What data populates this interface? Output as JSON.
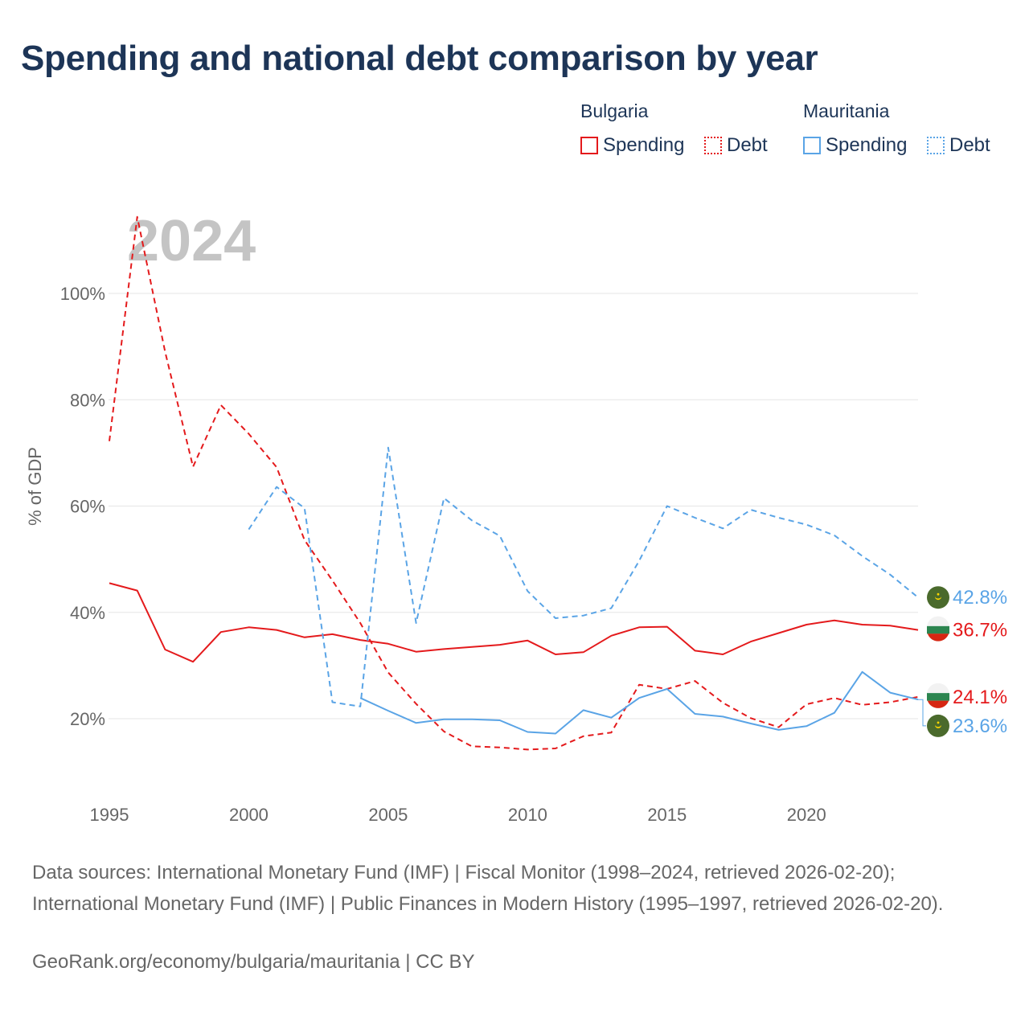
{
  "title": "Spending and national debt comparison by year",
  "legend": {
    "groups": [
      {
        "country": "Bulgaria",
        "color": "#e41a1c",
        "items": [
          {
            "label": "Spending",
            "style": "solid"
          },
          {
            "label": "Debt",
            "style": "dotted"
          }
        ]
      },
      {
        "country": "Mauritania",
        "color": "#5aa4e6",
        "items": [
          {
            "label": "Spending",
            "style": "solid"
          },
          {
            "label": "Debt",
            "style": "dotted"
          }
        ]
      }
    ]
  },
  "sources": "Data sources: International Monetary Fund (IMF) | Fiscal Monitor (1998–2024, retrieved 2026-02-20); International Monetary Fund (IMF) | Public Finances in Modern History (1995–1997, retrieved 2026-02-20).",
  "credit": "GeoRank.org/economy/bulgaria/mauritania | CC BY",
  "chart_data": {
    "type": "line",
    "title": "Spending and national debt comparison by year",
    "year_label": "2024",
    "ylabel": "% of GDP",
    "xlabel": "",
    "xlim": [
      1995,
      2024
    ],
    "ylim": [
      8,
      112
    ],
    "x_ticks": [
      1995,
      2000,
      2005,
      2010,
      2015,
      2020
    ],
    "y_ticks": [
      20,
      40,
      60,
      80,
      100
    ],
    "y_tick_labels": [
      "20%",
      "40%",
      "60%",
      "80%",
      "100%"
    ],
    "grid": true,
    "series": [
      {
        "name": "Bulgaria Spending",
        "country": "Bulgaria",
        "color": "#e41a1c",
        "dash": "solid",
        "end_label": "36.7%",
        "start_year": 1995,
        "values": [
          45.5,
          44.1,
          33.0,
          30.7,
          36.3,
          37.2,
          36.7,
          35.3,
          35.9,
          34.8,
          34.1,
          32.6,
          33.1,
          33.5,
          33.9,
          34.7,
          32.1,
          32.5,
          35.6,
          37.2,
          37.3,
          32.8,
          32.1,
          34.5,
          36.1,
          37.7,
          38.5,
          37.7,
          37.5,
          36.7
        ]
      },
      {
        "name": "Bulgaria Debt",
        "country": "Bulgaria",
        "color": "#e41a1c",
        "dash": "dashed",
        "end_label": "24.1%",
        "start_year": 1995,
        "values": [
          72.2,
          114.4,
          89.0,
          67.4,
          79.0,
          73.6,
          67.3,
          53.6,
          46.0,
          38.0,
          28.7,
          22.8,
          17.6,
          14.8,
          14.6,
          14.2,
          14.4,
          16.7,
          17.4,
          26.4,
          25.6,
          27.1,
          23.0,
          20.1,
          18.4,
          22.7,
          23.9,
          22.6,
          23.1,
          24.1
        ]
      },
      {
        "name": "Mauritania Spending",
        "country": "Mauritania",
        "color": "#5aa4e6",
        "dash": "solid",
        "end_label": "23.6%",
        "start_year": 2004,
        "values": [
          23.9,
          21.5,
          19.2,
          19.9,
          19.9,
          19.7,
          17.5,
          17.2,
          21.6,
          20.2,
          23.9,
          25.6,
          20.9,
          20.4,
          19.1,
          17.9,
          18.6,
          21.1,
          28.8,
          24.9,
          23.6
        ]
      },
      {
        "name": "Mauritania Debt",
        "country": "Mauritania",
        "color": "#5aa4e6",
        "dash": "dashed",
        "end_label": "42.8%",
        "start_year": 2000,
        "values": [
          55.6,
          63.6,
          59.6,
          23.1,
          22.3,
          71.0,
          38.0,
          61.5,
          57.3,
          54.4,
          44.0,
          38.9,
          39.4,
          40.8,
          49.7,
          60.0,
          57.8,
          55.8,
          59.3,
          57.8,
          56.5,
          54.5,
          50.6,
          47.1,
          42.8
        ]
      }
    ]
  }
}
